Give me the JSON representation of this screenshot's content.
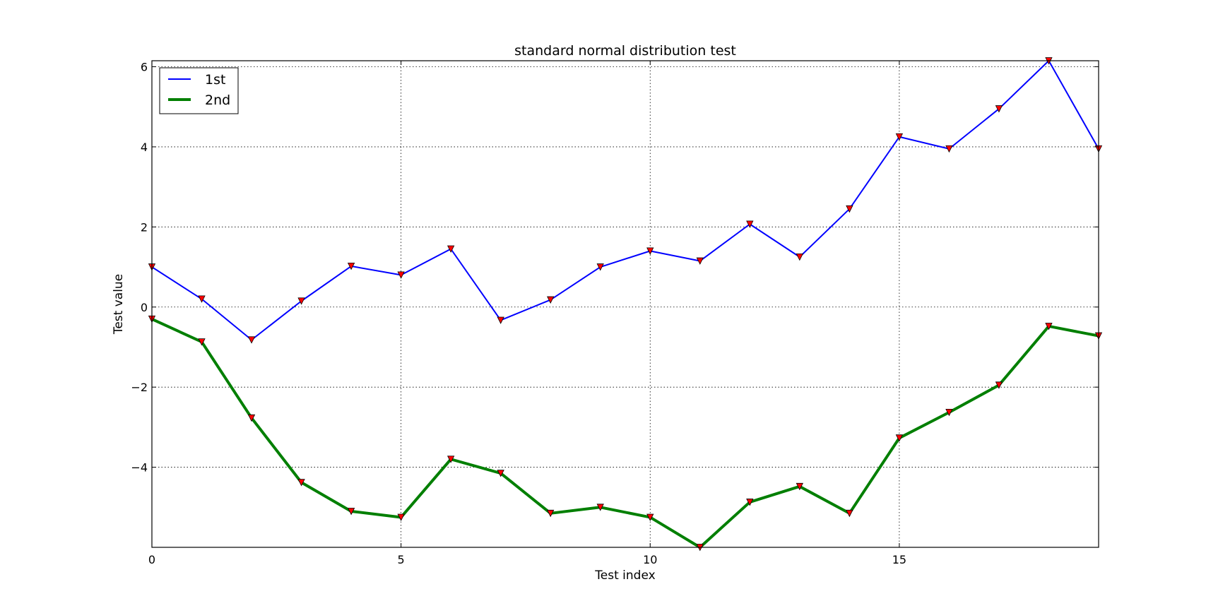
{
  "chart_data": {
    "type": "line",
    "title": "standard normal distribution test",
    "xlabel": "Test index",
    "ylabel": "Test value",
    "xlim": [
      0,
      19
    ],
    "ylim": [
      -6,
      6.15
    ],
    "xticks": [
      0,
      5,
      10,
      15
    ],
    "yticks": [
      -4,
      -2,
      0,
      2,
      4,
      6
    ],
    "ytick_labels": [
      "−4",
      "−2",
      "0",
      "2",
      "4",
      "6"
    ],
    "grid": true,
    "legend_position": "upper left",
    "x": [
      0,
      1,
      2,
      3,
      4,
      5,
      6,
      7,
      8,
      9,
      10,
      11,
      12,
      13,
      14,
      15,
      16,
      17,
      18,
      19
    ],
    "series": [
      {
        "name": "1st",
        "color": "#0000ff",
        "line_style": "thin",
        "values": [
          1.0,
          0.2,
          -0.82,
          0.15,
          1.02,
          0.8,
          1.45,
          -0.33,
          0.18,
          1.0,
          1.4,
          1.15,
          2.07,
          1.25,
          2.45,
          4.25,
          3.95,
          4.95,
          6.15,
          3.95
        ]
      },
      {
        "name": "2nd",
        "color": "#007f00",
        "line_style": "thick",
        "values": [
          -0.3,
          -0.87,
          -2.77,
          -4.38,
          -5.1,
          -5.25,
          -3.8,
          -4.15,
          -5.15,
          -5.0,
          -5.25,
          -6.0,
          -4.87,
          -4.48,
          -5.15,
          -3.27,
          -2.63,
          -1.95,
          -0.48,
          -0.72
        ]
      }
    ],
    "marker": {
      "shape": "triangle-down",
      "color": "#ff0000"
    }
  }
}
